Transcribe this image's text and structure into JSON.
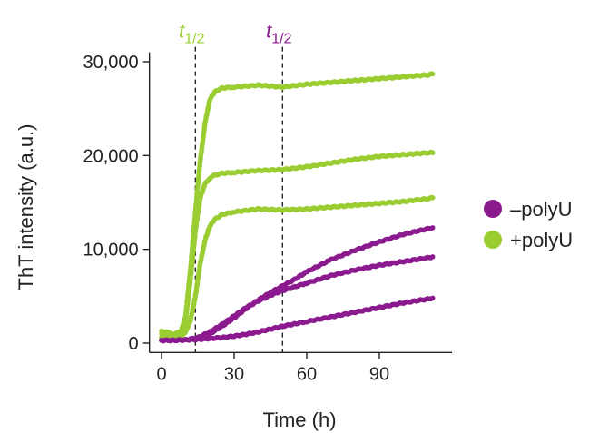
{
  "chart_data": {
    "type": "scatter",
    "xlabel": "Time (h)",
    "ylabel": "ThT intensity (a.u.)",
    "xlim": [
      -5,
      120
    ],
    "ylim": [
      -1000,
      31000
    ],
    "xticks": [
      0,
      30,
      60,
      90
    ],
    "xtick_labels": [
      "0",
      "30",
      "60",
      "90"
    ],
    "yticks": [
      0,
      10000,
      20000,
      30000
    ],
    "ytick_labels": [
      "0",
      "10,000",
      "20,000",
      "30,000"
    ],
    "grid": false,
    "legend_position": "right",
    "legend": [
      {
        "label": "–polyU",
        "color": "#8B1A8F"
      },
      {
        "label": "+polyU",
        "color": "#9ACD32"
      }
    ],
    "annotations": [
      {
        "text": "t",
        "subscript": "1/2",
        "x": 14,
        "color": "#9ACD32"
      },
      {
        "text": "t",
        "subscript": "1/2",
        "x": 50,
        "color": "#8B1A8F"
      }
    ],
    "series": [
      {
        "group": "+polyU",
        "color": "#9ACD32",
        "x": [
          0,
          3,
          5,
          8,
          10,
          12,
          14,
          16,
          18,
          20,
          22,
          25,
          30,
          40,
          50,
          60,
          70,
          80,
          90,
          100,
          110,
          112
        ],
        "y": [
          1300,
          1100,
          1000,
          1200,
          3000,
          8000,
          14000,
          19500,
          23500,
          26000,
          26800,
          27200,
          27300,
          27500,
          27300,
          27600,
          27800,
          28000,
          28200,
          28400,
          28600,
          28700
        ]
      },
      {
        "group": "+polyU",
        "color": "#9ACD32",
        "x": [
          0,
          3,
          5,
          8,
          10,
          12,
          14,
          16,
          18,
          20,
          22,
          25,
          30,
          40,
          50,
          60,
          70,
          80,
          90,
          100,
          110,
          112
        ],
        "y": [
          1000,
          900,
          800,
          1000,
          2500,
          7000,
          12000,
          15500,
          17000,
          17600,
          17900,
          18100,
          18200,
          18400,
          18500,
          18800,
          19200,
          19600,
          19900,
          20100,
          20300,
          20300
        ]
      },
      {
        "group": "+polyU",
        "color": "#9ACD32",
        "x": [
          0,
          3,
          5,
          8,
          10,
          12,
          14,
          16,
          18,
          20,
          22,
          25,
          30,
          40,
          50,
          60,
          70,
          80,
          90,
          100,
          110,
          112
        ],
        "y": [
          600,
          600,
          500,
          700,
          1200,
          2500,
          5000,
          8500,
          11000,
          12500,
          13200,
          13700,
          14000,
          14300,
          14200,
          14300,
          14500,
          14700,
          14900,
          15100,
          15400,
          15500
        ]
      },
      {
        "group": "–polyU",
        "color": "#8B1A8F",
        "x": [
          0,
          5,
          10,
          15,
          20,
          25,
          30,
          35,
          40,
          45,
          50,
          55,
          60,
          70,
          80,
          90,
          100,
          110,
          112
        ],
        "y": [
          300,
          300,
          350,
          500,
          1000,
          1800,
          2700,
          3700,
          4600,
          5400,
          6100,
          6800,
          7600,
          8900,
          9900,
          10800,
          11600,
          12200,
          12300
        ]
      },
      {
        "group": "–polyU",
        "color": "#8B1A8F",
        "x": [
          0,
          5,
          10,
          15,
          20,
          25,
          30,
          35,
          40,
          45,
          50,
          55,
          60,
          70,
          80,
          90,
          100,
          110,
          112
        ],
        "y": [
          300,
          300,
          350,
          600,
          1200,
          2000,
          2900,
          3800,
          4500,
          5100,
          5600,
          6000,
          6400,
          7200,
          7800,
          8300,
          8700,
          9100,
          9200
        ]
      },
      {
        "group": "–polyU",
        "color": "#8B1A8F",
        "x": [
          0,
          5,
          10,
          15,
          20,
          25,
          30,
          35,
          40,
          45,
          50,
          55,
          60,
          70,
          80,
          90,
          100,
          110,
          112
        ],
        "y": [
          300,
          300,
          350,
          400,
          500,
          600,
          750,
          950,
          1200,
          1500,
          1800,
          2050,
          2300,
          2800,
          3300,
          3800,
          4300,
          4700,
          4800
        ]
      }
    ]
  }
}
